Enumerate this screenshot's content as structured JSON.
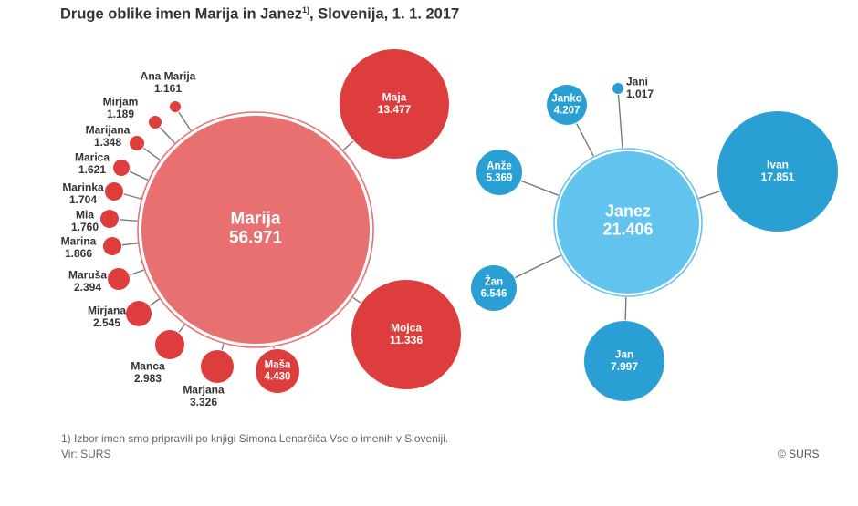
{
  "title": {
    "main": "Druge oblike imen Marija in Janez",
    "superscript": "1)",
    "suffix": ", Slovenija, 1. 1. 2017"
  },
  "colors": {
    "marija_center": "#e87070",
    "marija_satellite": "#de3d3d",
    "janez_center": "#62c3ef",
    "janez_satellite": "#2a9fd4",
    "line": "#7a7a7a",
    "text_dark": "#333333"
  },
  "groups": [
    {
      "id": "marija",
      "center": {
        "name": "Marija",
        "value": "56.971"
      },
      "satellites": [
        {
          "name": "Maja",
          "value": "13.477"
        },
        {
          "name": "Mojca",
          "value": "11.336"
        },
        {
          "name": "Maša",
          "value": "4.430"
        },
        {
          "name": "Marjana",
          "value": "3.326"
        },
        {
          "name": "Manca",
          "value": "2.983"
        },
        {
          "name": "Mirjana",
          "value": "2.545"
        },
        {
          "name": "Maruša",
          "value": "2.394"
        },
        {
          "name": "Marina",
          "value": "1.866"
        },
        {
          "name": "Mia",
          "value": "1.760"
        },
        {
          "name": "Marinka",
          "value": "1.704"
        },
        {
          "name": "Marica",
          "value": "1.621"
        },
        {
          "name": "Marijana",
          "value": "1.348"
        },
        {
          "name": "Mirjam",
          "value": "1.189"
        },
        {
          "name": "Ana Marija",
          "value": "1.161"
        }
      ]
    },
    {
      "id": "janez",
      "center": {
        "name": "Janez",
        "value": "21.406"
      },
      "satellites": [
        {
          "name": "Ivan",
          "value": "17.851"
        },
        {
          "name": "Jan",
          "value": "7.997"
        },
        {
          "name": "Žan",
          "value": "6.546"
        },
        {
          "name": "Anže",
          "value": "5.369"
        },
        {
          "name": "Janko",
          "value": "4.207"
        },
        {
          "name": "Jani",
          "value": "1.017"
        }
      ]
    }
  ],
  "footnote": "1) Izbor imen smo pripravili po knjigi Simona Lenarčiča Vse o imenih v Sloveniji.",
  "source": "Vir: SURS",
  "copyright": "© SURS"
}
